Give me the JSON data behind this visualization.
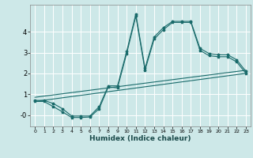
{
  "xlabel": "Humidex (Indice chaleur)",
  "bg_color": "#cde8e8",
  "grid_color": "#ffffff",
  "line_color": "#1a6b6b",
  "xlim": [
    -0.5,
    23.5
  ],
  "ylim": [
    -0.55,
    5.3
  ],
  "x_ticks": [
    0,
    1,
    2,
    3,
    4,
    5,
    6,
    7,
    8,
    9,
    10,
    11,
    12,
    13,
    14,
    15,
    16,
    17,
    18,
    19,
    20,
    21,
    22,
    23
  ],
  "y_ticks": [
    0,
    1,
    2,
    3,
    4
  ],
  "y_tick_labels": [
    "-0",
    "1",
    "2",
    "3",
    "4"
  ],
  "series1_x": [
    0,
    1,
    2,
    3,
    4,
    5,
    6,
    7,
    8,
    9,
    10,
    11,
    12,
    13,
    14,
    15,
    16,
    17,
    18,
    19,
    20,
    21,
    22,
    23
  ],
  "series1_y": [
    0.7,
    0.7,
    0.55,
    0.3,
    -0.05,
    -0.05,
    -0.05,
    0.4,
    1.4,
    1.4,
    3.05,
    4.85,
    2.25,
    3.75,
    4.2,
    4.5,
    4.5,
    4.5,
    3.2,
    2.95,
    2.9,
    2.9,
    2.65,
    2.1
  ],
  "series2_x": [
    0,
    1,
    2,
    3,
    4,
    5,
    6,
    7,
    8,
    9,
    10,
    11,
    12,
    13,
    14,
    15,
    16,
    17,
    18,
    19,
    20,
    21,
    22,
    23
  ],
  "series2_y": [
    0.65,
    0.65,
    0.4,
    0.15,
    -0.12,
    -0.12,
    -0.1,
    0.3,
    1.35,
    1.3,
    2.95,
    4.75,
    2.15,
    3.65,
    4.1,
    4.45,
    4.45,
    4.45,
    3.1,
    2.85,
    2.8,
    2.8,
    2.55,
    2.0
  ],
  "series3_x": [
    0,
    23
  ],
  "series3_y": [
    0.65,
    2.0
  ],
  "series4_x": [
    0,
    23
  ],
  "series4_y": [
    0.85,
    2.15
  ]
}
